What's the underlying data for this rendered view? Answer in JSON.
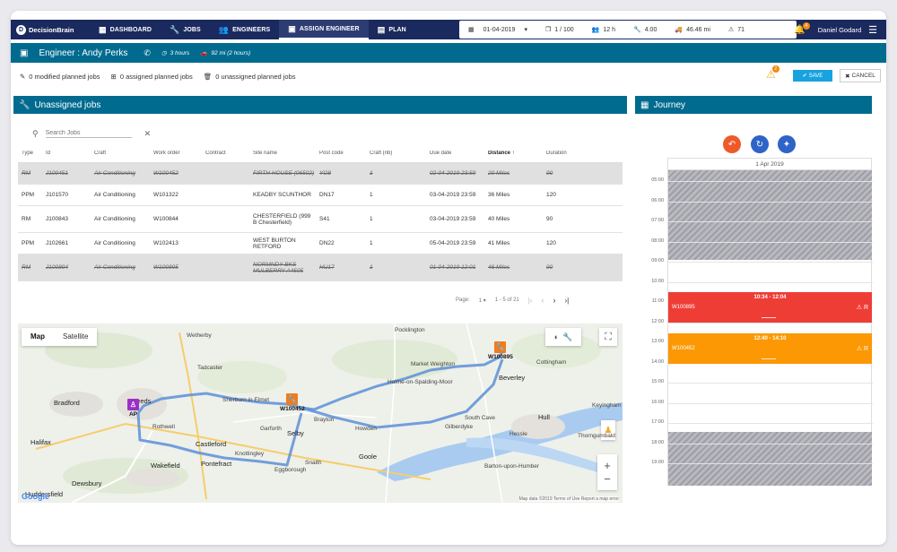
{
  "nav": {
    "brand": "DecisionBrain",
    "items": [
      {
        "label": "DASHBOARD",
        "icon": "dashboard-icon"
      },
      {
        "label": "JOBS",
        "icon": "wrench-icon"
      },
      {
        "label": "ENGINEERS",
        "icon": "people-icon"
      },
      {
        "label": "ASSIGN ENGINEER",
        "icon": "id-card-icon"
      },
      {
        "label": "PLAN",
        "icon": "clipboard-icon"
      }
    ],
    "toolbar": {
      "date": "01-04-2019",
      "jobs_count": "1 / 100",
      "hours": "12 h",
      "tools": "4.00",
      "distance": "46.46 mi",
      "alerts": "71"
    },
    "notifications": "4",
    "user": "Daniel Godard"
  },
  "engineer": {
    "title": "Engineer : Andy Perks",
    "duration": "3 hours",
    "travel": "92 mi (2 hours)"
  },
  "actions": {
    "modified": "0 modified planned jobs",
    "assigned": "0 assigned planned jobs",
    "unassigned": "0 unassigned planned jobs",
    "warnings": "2",
    "save": "SAVE",
    "cancel": "CANCEL"
  },
  "unassigned": {
    "title": "Unassigned jobs",
    "search_placeholder": "Search Jobs",
    "columns": [
      "Type",
      "Id",
      "Craft",
      "Work order",
      "Contract",
      "Site name",
      "Post code",
      "Craft (nb)",
      "Due date",
      "Distance",
      "Duration"
    ],
    "rows": [
      {
        "type": "RM",
        "id": "J100451",
        "craft": "Air Conditioning",
        "work_order": "W100452",
        "contract": "",
        "site": "FIRTH HOUSE (06502)",
        "postcode": "YO8",
        "craft_nb": "1",
        "due": "02-04-2019 23:59",
        "distance": "20 Miles",
        "duration": "90",
        "disabled": true
      },
      {
        "type": "PPM",
        "id": "J101570",
        "craft": "Air Conditioning",
        "work_order": "W101322",
        "contract": "",
        "site": "KEADBY SCUNTHOR",
        "postcode": "DN17",
        "craft_nb": "1",
        "due": "03-04-2019 23:59",
        "distance": "36 Miles",
        "duration": "120",
        "disabled": false
      },
      {
        "type": "RM",
        "id": "J100843",
        "craft": "Air Conditioning",
        "work_order": "W100844",
        "contract": "",
        "site": "CHESTERFIELD (999 B Chesterfield)",
        "postcode": "S41",
        "craft_nb": "1",
        "due": "03-04-2019 23:59",
        "distance": "40 Miles",
        "duration": "90",
        "disabled": false
      },
      {
        "type": "PPM",
        "id": "J102661",
        "craft": "Air Conditioning",
        "work_order": "W102413",
        "contract": "",
        "site": "WEST BURTON RETFORD",
        "postcode": "DN22",
        "craft_nb": "1",
        "due": "05-04-2019 23:59",
        "distance": "41 Miles",
        "duration": "120",
        "disabled": false
      },
      {
        "type": "RM",
        "id": "J100894",
        "craft": "Air Conditioning",
        "work_order": "W100895",
        "contract": "",
        "site": "NORMNDY BKS MULBERRY A4505",
        "postcode": "HU17",
        "craft_nb": "1",
        "due": "01-04-2019 12:01",
        "distance": "46 Miles",
        "duration": "90",
        "disabled": true
      }
    ],
    "pager": {
      "label": "Page:",
      "page": "1",
      "range": "1 - 5 of 21"
    }
  },
  "map": {
    "tab_map": "Map",
    "tab_satellite": "Satellite",
    "labels": [
      "Pocklington",
      "Market Weighton",
      "Beverley",
      "Cottingham",
      "Bradford",
      "Leeds",
      "Selby",
      "Howden",
      "Goole",
      "Hull",
      "Castleford",
      "Pontefract",
      "Wakefield",
      "Dewsbury",
      "Huddersfield",
      "Halifax",
      "Wetherby",
      "Tadcaster",
      "Sherburn in Elmet",
      "South Cave",
      "Gilberdyke",
      "Holme-on-Spalding-Moor",
      "Thorngumbald",
      "Barton-upon-Humber",
      "Knottingley",
      "Snaith",
      "Eggborough",
      "Rothwell",
      "Garforth",
      "Brayton",
      "Keyingham",
      "Hessle"
    ],
    "pins": {
      "origin": "AP",
      "job1": "W100452",
      "job2": "W100895"
    },
    "footer": "Map data ©2019   Terms of Use  Report a map error",
    "google": "Google"
  },
  "journey": {
    "title": "Journey",
    "day": "1 Apr 2019",
    "hours": [
      "05:00",
      "06:00",
      "07:00",
      "08:00",
      "09:00",
      "10:00",
      "11:00",
      "12:00",
      "13:00",
      "14:00",
      "15:00",
      "16:00",
      "17:00",
      "18:00",
      "19:00"
    ],
    "events": [
      {
        "time": "10:34 - 12:04",
        "id": "W100895",
        "flag": "R",
        "color": "#ee3d35"
      },
      {
        "time": "12:40 - 14:10",
        "id": "W100452",
        "flag": "R",
        "color": "#fb9804"
      }
    ]
  }
}
